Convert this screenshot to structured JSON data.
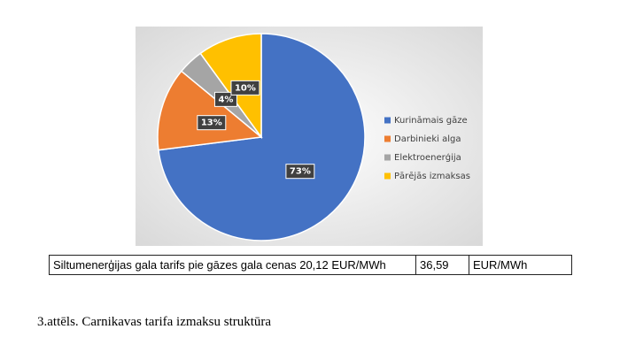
{
  "chart_data": {
    "type": "pie",
    "categories": [
      "Kurināmais gāze",
      "Darbinieki alga",
      "Elektroenerģija",
      "Pārējās izmaksas"
    ],
    "values": [
      73,
      13,
      4,
      10
    ],
    "value_labels": [
      "73%",
      "13%",
      "4%",
      "10%"
    ],
    "colors": [
      "#4472c4",
      "#ed7d31",
      "#a5a5a5",
      "#ffc000"
    ],
    "legend": "right"
  },
  "table": {
    "rows": [
      [
        "Siltumenerģijas gala tarifs pie gāzes gala cenas 20,12 EUR/MWh",
        "36,59",
        "EUR/MWh"
      ]
    ]
  },
  "caption": "3.attēls. Carnikavas tarifa izmaksu struktūra"
}
